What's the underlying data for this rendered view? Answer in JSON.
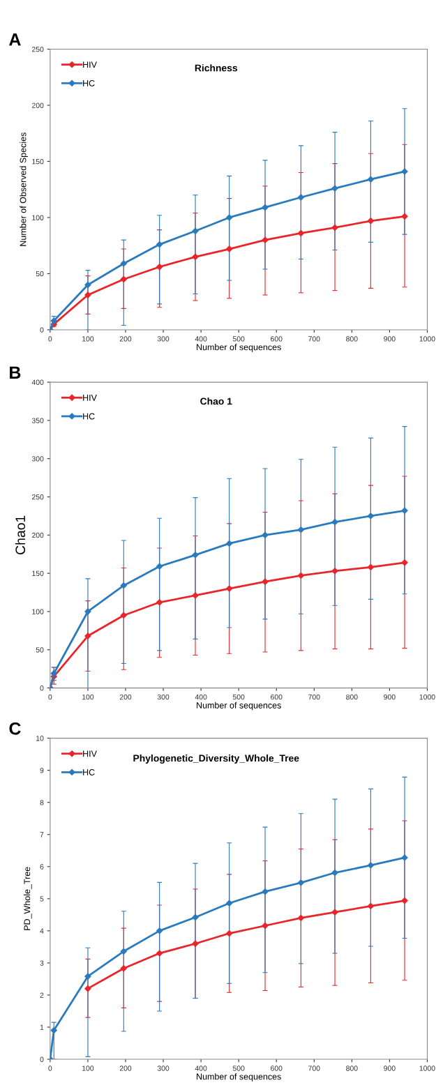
{
  "chart_data": [
    {
      "type": "line",
      "title": "Richness",
      "xlabel": "Number of sequences",
      "ylabel": "Number of Observed Species",
      "annotations": [
        "A"
      ],
      "x": [
        0,
        10,
        100,
        195,
        290,
        385,
        475,
        570,
        665,
        755,
        850,
        940
      ],
      "xlim": [
        0,
        1000
      ],
      "xticks": [
        0,
        100,
        200,
        300,
        400,
        500,
        600,
        700,
        800,
        900,
        1000
      ],
      "ylim": [
        0,
        250
      ],
      "yticks": [
        0,
        50,
        100,
        150,
        200,
        250
      ],
      "grid": false,
      "legend": "top left",
      "marker": "diamond",
      "line_style": "solid",
      "series": [
        {
          "name": "HIV",
          "color": "#e8262a",
          "values": [
            0,
            5,
            31,
            45,
            56,
            65,
            72,
            80,
            86,
            91,
            97,
            101
          ],
          "errors": [
            null,
            [
              3,
              8
            ],
            [
              14,
              48
            ],
            [
              19,
              72
            ],
            [
              20,
              89
            ],
            [
              26,
              104
            ],
            [
              28,
              117
            ],
            [
              31,
              128
            ],
            [
              33,
              140
            ],
            [
              35,
              148
            ],
            [
              37,
              157
            ],
            [
              38,
              165
            ]
          ]
        },
        {
          "name": "HC",
          "color": "#2a7bbd",
          "values": [
            0,
            8,
            40,
            59,
            76,
            88,
            100,
            109,
            118,
            126,
            134,
            141
          ],
          "errors": [
            null,
            [
              4,
              12
            ],
            [
              0,
              53
            ],
            [
              4,
              80
            ],
            [
              23,
              102
            ],
            [
              32,
              120
            ],
            [
              44,
              137
            ],
            [
              54,
              151
            ],
            [
              63,
              164
            ],
            [
              71,
              176
            ],
            [
              78,
              186
            ],
            [
              85,
              197
            ]
          ]
        }
      ]
    },
    {
      "type": "line",
      "title": "Chao 1",
      "xlabel": "Number of sequences",
      "ylabel": "Chao1",
      "annotations": [
        "B"
      ],
      "x": [
        0,
        10,
        100,
        195,
        290,
        385,
        475,
        570,
        665,
        755,
        850,
        940
      ],
      "xlim": [
        0,
        1000
      ],
      "xticks": [
        0,
        100,
        200,
        300,
        400,
        500,
        600,
        700,
        800,
        900,
        1000
      ],
      "ylim": [
        0,
        400
      ],
      "yticks": [
        0,
        50,
        100,
        150,
        200,
        250,
        300,
        350,
        400
      ],
      "grid": false,
      "legend": "top left",
      "marker": "diamond",
      "line_style": "solid",
      "series": [
        {
          "name": "HIV",
          "color": "#e8262a",
          "values": [
            0,
            15,
            68,
            95,
            112,
            121,
            130,
            139,
            147,
            153,
            158,
            164
          ],
          "errors": [
            null,
            [
              5,
              27
            ],
            [
              22,
              114
            ],
            [
              24,
              157
            ],
            [
              40,
              183
            ],
            [
              43,
              199
            ],
            [
              45,
              215
            ],
            [
              47,
              230
            ],
            [
              49,
              245
            ],
            [
              51,
              254
            ],
            [
              51,
              265
            ],
            [
              52,
              277
            ]
          ]
        },
        {
          "name": "HC",
          "color": "#2a7bbd",
          "values": [
            0,
            19,
            100,
            134,
            159,
            174,
            189,
            200,
            207,
            217,
            225,
            232
          ],
          "errors": [
            null,
            [
              10,
              27
            ],
            [
              0,
              143
            ],
            [
              32,
              193
            ],
            [
              49,
              222
            ],
            [
              64,
              249
            ],
            [
              79,
              274
            ],
            [
              90,
              287
            ],
            [
              97,
              299
            ],
            [
              108,
              315
            ],
            [
              116,
              327
            ],
            [
              123,
              342
            ]
          ]
        }
      ]
    },
    {
      "type": "line",
      "title": "Phylogenetic_Diversity_Whole_Tree",
      "xlabel": "Number of sequences",
      "ylabel": "PD_Whole_Tree",
      "annotations": [
        "C"
      ],
      "x": [
        0,
        10,
        100,
        195,
        290,
        385,
        475,
        570,
        665,
        755,
        850,
        940
      ],
      "xlim": [
        0,
        1000
      ],
      "xticks": [
        0,
        100,
        200,
        300,
        400,
        500,
        600,
        700,
        800,
        900,
        1000
      ],
      "ylim": [
        0,
        10
      ],
      "yticks": [
        0,
        1,
        2,
        3,
        4,
        5,
        6,
        7,
        8,
        9,
        10
      ],
      "grid": false,
      "legend": "top left",
      "marker": "diamond",
      "line_style": "solid",
      "series": [
        {
          "name": "HIV",
          "color": "#e8262a",
          "values": [
            0,
            null,
            2.2,
            2.83,
            3.3,
            3.6,
            3.92,
            4.16,
            4.4,
            4.58,
            4.77,
            4.94
          ],
          "errors": [
            null,
            null,
            [
              1.3,
              3.12
            ],
            [
              1.6,
              4.08
            ],
            [
              1.8,
              4.8
            ],
            [
              1.9,
              5.3
            ],
            [
              2.08,
              5.76
            ],
            [
              2.14,
              6.18
            ],
            [
              2.25,
              6.55
            ],
            [
              2.3,
              6.84
            ],
            [
              2.38,
              7.17
            ],
            [
              2.46,
              7.43
            ]
          ]
        },
        {
          "name": "HC",
          "color": "#2a7bbd",
          "values": [
            0,
            0.9,
            2.58,
            3.36,
            4.0,
            4.42,
            4.86,
            5.22,
            5.5,
            5.81,
            6.04,
            6.28
          ],
          "errors": [
            null,
            [
              0,
              1.15
            ],
            [
              0.08,
              3.47
            ],
            [
              0.87,
              4.61
            ],
            [
              1.5,
              5.51
            ],
            [
              1.9,
              6.1
            ],
            [
              2.36,
              6.74
            ],
            [
              2.7,
              7.23
            ],
            [
              2.98,
              7.65
            ],
            [
              3.3,
              8.1
            ],
            [
              3.52,
              8.42
            ],
            [
              3.77,
              8.79
            ]
          ]
        }
      ]
    }
  ]
}
